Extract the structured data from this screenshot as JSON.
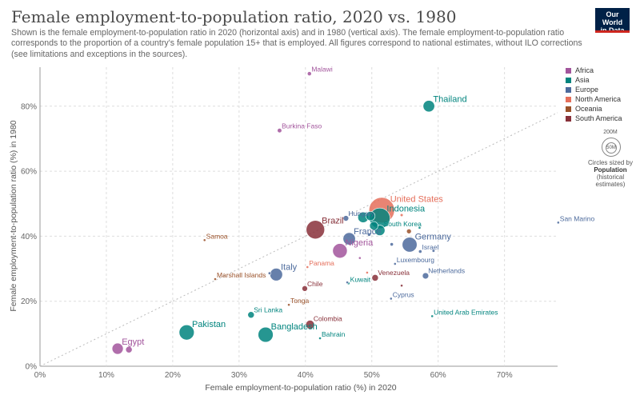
{
  "header": {
    "title": "Female employment-to-population ratio, 2020 vs. 1980",
    "subtitle": "Shown is the female employment-to-population ratio in 2020 (horizontal axis) and in 1980 (vertical axis). The female employment-to-population ratio corresponds to the proportion of a country's female population 15+ that is employed. All figures correspond to national estimates, without ILO corrections (see limitations and exceptions in the sources).",
    "logo_line1": "Our World",
    "logo_line2": "in Data"
  },
  "legend": {
    "items": [
      {
        "label": "Africa",
        "color": "#a2559c"
      },
      {
        "label": "Asia",
        "color": "#00847e"
      },
      {
        "label": "Europe",
        "color": "#4c6a9c"
      },
      {
        "label": "North America",
        "color": "#e56e5a"
      },
      {
        "label": "Oceania",
        "color": "#9a5129"
      },
      {
        "label": "South America",
        "color": "#883039"
      }
    ],
    "size_big": "200M",
    "size_small": "50M",
    "size_caption_1": "Circles sized by",
    "size_caption_2": "Population",
    "size_caption_3": "(historical estimates)"
  },
  "chart_data": {
    "type": "scatter",
    "title": "Female employment-to-population ratio, 2020 vs. 1980",
    "xlabel": "Female employment-to-population ratio (%) in 2020",
    "ylabel": "Female employment-to-population ratio (%) in 1980",
    "xlim": [
      0,
      78
    ],
    "ylim": [
      0,
      92
    ],
    "x_ticks": [
      "0%",
      "10%",
      "20%",
      "30%",
      "40%",
      "50%",
      "60%",
      "70%"
    ],
    "x_tick_values": [
      0,
      10,
      20,
      30,
      40,
      50,
      60,
      70
    ],
    "y_ticks": [
      "0%",
      "20%",
      "40%",
      "60%",
      "80%"
    ],
    "y_tick_values": [
      0,
      20,
      40,
      60,
      80
    ],
    "diagonal": true,
    "points": [
      {
        "label": "Malawi",
        "x": 40.6,
        "y": 90,
        "pop": 6,
        "color": "#a2559c",
        "show_label": true
      },
      {
        "label": "Thailand",
        "x": 58.6,
        "y": 80,
        "pop": 47,
        "color": "#00847e",
        "show_label": true
      },
      {
        "label": "Burkina Faso",
        "x": 36.1,
        "y": 72.5,
        "pop": 7,
        "color": "#a2559c",
        "show_label": true
      },
      {
        "label": "United States",
        "x": 51.5,
        "y": 48,
        "pop": 230,
        "color": "#e56e5a",
        "show_label": true
      },
      {
        "label": "Indonesia",
        "x": 51.2,
        "y": 45.5,
        "pop": 150,
        "color": "#00847e",
        "show_label": true
      },
      {
        "label": "Hungary",
        "x": 46.1,
        "y": 45.5,
        "pop": 11,
        "color": "#4c6a9c",
        "show_label": true
      },
      {
        "label": "South Korea",
        "x": 51.2,
        "y": 41.8,
        "pop": 38,
        "color": "#00847e",
        "show_label": true
      },
      {
        "label": "Brazil",
        "x": 41.5,
        "y": 42,
        "pop": 120,
        "color": "#883039",
        "show_label": true
      },
      {
        "label": "Samoa",
        "x": 24.8,
        "y": 38.8,
        "pop": 0.2,
        "color": "#9a5129",
        "show_label": true
      },
      {
        "label": "France",
        "x": 46.6,
        "y": 39.2,
        "pop": 54,
        "color": "#4c6a9c",
        "show_label": true
      },
      {
        "label": "Germany",
        "x": 55.7,
        "y": 37.4,
        "pop": 78,
        "color": "#4c6a9c",
        "show_label": true
      },
      {
        "label": "Nigeria",
        "x": 45.2,
        "y": 35.5,
        "pop": 75,
        "color": "#a2559c",
        "show_label": true
      },
      {
        "label": "Israel",
        "x": 57.3,
        "y": 35.3,
        "pop": 4,
        "color": "#4c6a9c",
        "show_label": true
      },
      {
        "label": "San Marino",
        "x": 78.1,
        "y": 44.2,
        "pop": 0.02,
        "color": "#4c6a9c",
        "show_label": true
      },
      {
        "label": "Luxembourg",
        "x": 53.5,
        "y": 31.5,
        "pop": 0.4,
        "color": "#4c6a9c",
        "show_label": true
      },
      {
        "label": "Panama",
        "x": 40.3,
        "y": 30.5,
        "pop": 2,
        "color": "#e56e5a",
        "show_label": true
      },
      {
        "label": "Italy",
        "x": 35.6,
        "y": 28.2,
        "pop": 56,
        "color": "#4c6a9c",
        "show_label": true
      },
      {
        "label": "Marshall Islands",
        "x": 26.4,
        "y": 26.8,
        "pop": 0.03,
        "color": "#9a5129",
        "show_label": true
      },
      {
        "label": "Netherlands",
        "x": 58.1,
        "y": 27.8,
        "pop": 14,
        "color": "#4c6a9c",
        "show_label": true
      },
      {
        "label": "Venezuela",
        "x": 50.5,
        "y": 27.2,
        "pop": 15,
        "color": "#883039",
        "show_label": true
      },
      {
        "label": "Kuwait",
        "x": 46.5,
        "y": 25.5,
        "pop": 1.4,
        "color": "#00847e",
        "show_label": true
      },
      {
        "label": "Chile",
        "x": 39.9,
        "y": 23.9,
        "pop": 11,
        "color": "#883039",
        "show_label": true
      },
      {
        "label": "Cyprus",
        "x": 52.9,
        "y": 20.8,
        "pop": 0.6,
        "color": "#4c6a9c",
        "show_label": true
      },
      {
        "label": "Tonga",
        "x": 37.5,
        "y": 18.9,
        "pop": 0.1,
        "color": "#9a5129",
        "show_label": true
      },
      {
        "label": "Sri Lanka",
        "x": 31.8,
        "y": 15.8,
        "pop": 15,
        "color": "#00847e",
        "show_label": true
      },
      {
        "label": "United Arab Emirates",
        "x": 59.1,
        "y": 15.4,
        "pop": 1,
        "color": "#00847e",
        "show_label": true
      },
      {
        "label": "Colombia",
        "x": 40.7,
        "y": 12.8,
        "pop": 27,
        "color": "#883039",
        "show_label": true
      },
      {
        "label": "Pakistan",
        "x": 22.1,
        "y": 10.4,
        "pop": 80,
        "color": "#00847e",
        "show_label": true
      },
      {
        "label": "Bangladesh",
        "x": 34,
        "y": 9.7,
        "pop": 80,
        "color": "#00847e",
        "show_label": true
      },
      {
        "label": "Bahrain",
        "x": 42.2,
        "y": 8.6,
        "pop": 0.4,
        "color": "#00847e",
        "show_label": true
      },
      {
        "label": "Egypt",
        "x": 11.7,
        "y": 5.4,
        "pop": 44,
        "color": "#a2559c",
        "show_label": true
      },
      {
        "label": "",
        "x": 13.4,
        "y": 5.1,
        "pop": 15,
        "color": "#a2559c",
        "show_label": false
      },
      {
        "label": "",
        "x": 48.7,
        "y": 45.8,
        "pop": 40,
        "color": "#00847e",
        "show_label": false
      },
      {
        "label": "",
        "x": 49.8,
        "y": 46.2,
        "pop": 30,
        "color": "#00847e",
        "show_label": false
      },
      {
        "label": "",
        "x": 50.3,
        "y": 43.2,
        "pop": 25,
        "color": "#00847e",
        "show_label": false
      },
      {
        "label": "",
        "x": 54.5,
        "y": 46.5,
        "pop": 3,
        "color": "#e56e5a",
        "show_label": false
      },
      {
        "label": "",
        "x": 57.2,
        "y": 42.6,
        "pop": 2,
        "color": "#00847e",
        "show_label": false
      },
      {
        "label": "",
        "x": 55.6,
        "y": 41.5,
        "pop": 8,
        "color": "#9a5129",
        "show_label": false
      },
      {
        "label": "",
        "x": 53,
        "y": 37.5,
        "pop": 4,
        "color": "#4c6a9c",
        "show_label": false
      },
      {
        "label": "",
        "x": 59.3,
        "y": 35.5,
        "pop": 3,
        "color": "#4c6a9c",
        "show_label": false
      },
      {
        "label": "",
        "x": 54.5,
        "y": 24.8,
        "pop": 2,
        "color": "#883039",
        "show_label": false
      },
      {
        "label": "",
        "x": 48.2,
        "y": 33.3,
        "pop": 0.5,
        "color": "#a2559c",
        "show_label": false
      },
      {
        "label": "",
        "x": 49.3,
        "y": 28.8,
        "pop": 0.5,
        "color": "#e56e5a",
        "show_label": false
      },
      {
        "label": "",
        "x": 49.6,
        "y": 40.5,
        "pop": 4,
        "color": "#4c6a9c",
        "show_label": false
      },
      {
        "label": "",
        "x": 34.6,
        "y": 28.6,
        "pop": 3,
        "color": "#4c6a9c",
        "show_label": false
      },
      {
        "label": "",
        "x": 46.3,
        "y": 25.8,
        "pop": 1,
        "color": "#4c6a9c",
        "show_label": false
      }
    ]
  }
}
